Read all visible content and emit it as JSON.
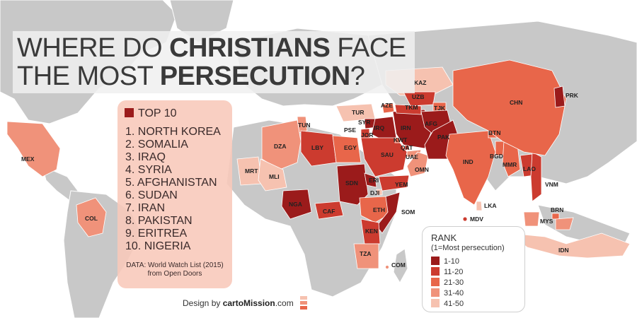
{
  "title": {
    "line1_pre": "WHERE DO ",
    "line1_bold": "CHRISTIANS",
    "line1_post": " FACE",
    "line2_pre": "THE MOST ",
    "line2_bold": "PERSECUTION",
    "line2_post": "?"
  },
  "top10": {
    "heading": "TOP 10",
    "items": [
      "1. NORTH KOREA",
      "2. SOMALIA",
      "3. IRAQ",
      "4. SYRIA",
      "5. AFGHANISTAN",
      "6. SUDAN",
      "7. IRAN",
      "8. PAKISTAN",
      "9. ERITREA",
      "10. NIGERIA"
    ],
    "source_line1": "DATA: World Watch List (2015)",
    "source_line2": "from Open Doors"
  },
  "legend": {
    "title": "RANK",
    "subtitle": "(1=Most persecution)",
    "items": [
      {
        "label": "1-10",
        "color": "#9b1b1b"
      },
      {
        "label": "11-20",
        "color": "#cc3b2f"
      },
      {
        "label": "21-30",
        "color": "#e8664a"
      },
      {
        "label": "31-40",
        "color": "#f0927a"
      },
      {
        "label": "41-50",
        "color": "#f6c2b0"
      }
    ]
  },
  "credit": {
    "prefix": "Design by ",
    "brand": "cartoMission",
    "suffix": ".com"
  },
  "colors": {
    "ocean": "#ffffff",
    "land": "#c8c8c8",
    "border": "#ffffff"
  },
  "country_labels": [
    "MEX",
    "COL",
    "TUN",
    "DZA",
    "LBY",
    "EGY",
    "MRT",
    "MLI",
    "NGA",
    "CAF",
    "SDN",
    "ERI",
    "DJI",
    "ETH",
    "SOM",
    "KEN",
    "TZA",
    "COM",
    "TUR",
    "SYR",
    "PSE",
    "JOR",
    "IRQ",
    "SAU",
    "KWT",
    "QAT",
    "UAE",
    "OMN",
    "YEM",
    "AZE",
    "IRN",
    "KAZ",
    "UZB",
    "TKM",
    "TJK",
    "AFG",
    "PAK",
    "IND",
    "MDV",
    "LKA",
    "BTN",
    "BGD",
    "MMR",
    "LAO",
    "VNM",
    "CHN",
    "PRK",
    "BRN",
    "MYS",
    "IDN"
  ]
}
